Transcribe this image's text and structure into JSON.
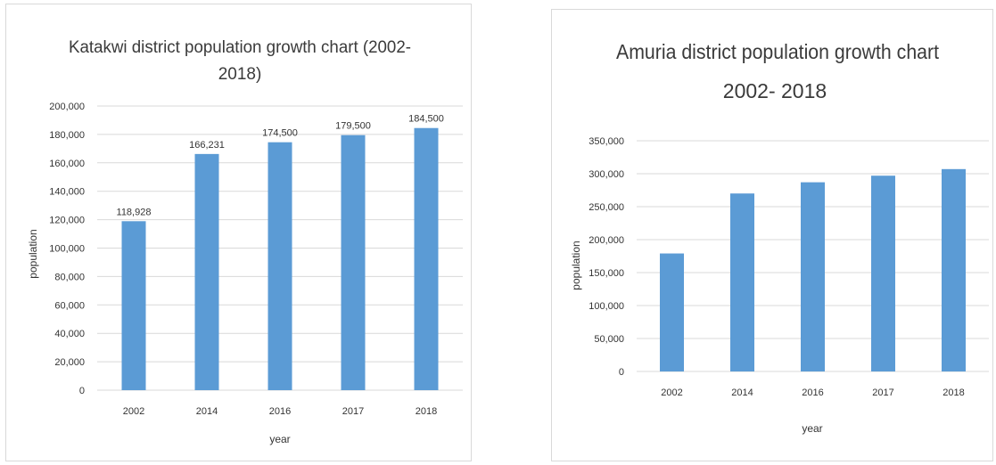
{
  "chart_data": [
    {
      "type": "bar",
      "title_lines": [
        "Katakwi district population growth chart (2002-",
        "2018)"
      ],
      "categories": [
        "2002",
        "2014",
        "2016",
        "2017",
        "2018"
      ],
      "values": [
        118928,
        166231,
        174500,
        179500,
        184500
      ],
      "data_labels": [
        "118,928",
        "166,231",
        "174,500",
        "179,500",
        "184,500"
      ],
      "xlabel": "year",
      "ylabel": "population",
      "ylim": [
        0,
        200000
      ],
      "yticks": [
        "0",
        "20,000",
        "40,000",
        "60,000",
        "80,000",
        "100,000",
        "120,000",
        "140,000",
        "160,000",
        "180,000",
        "200,000"
      ],
      "grid": true,
      "bar_color": "#5b9bd5"
    },
    {
      "type": "bar",
      "title_lines": [
        "Amuria district population growth chart",
        "2002- 2018"
      ],
      "categories": [
        "2002",
        "2014",
        "2016",
        "2017",
        "2018"
      ],
      "values": [
        179000,
        270000,
        287000,
        297000,
        307000
      ],
      "xlabel": "year",
      "ylabel": "population",
      "ylim": [
        0,
        350000
      ],
      "yticks": [
        "0",
        "50,000",
        "100,000",
        "150,000",
        "200,000",
        "250,000",
        "300,000",
        "350,000"
      ],
      "grid": true,
      "bar_color": "#5b9bd5"
    }
  ]
}
